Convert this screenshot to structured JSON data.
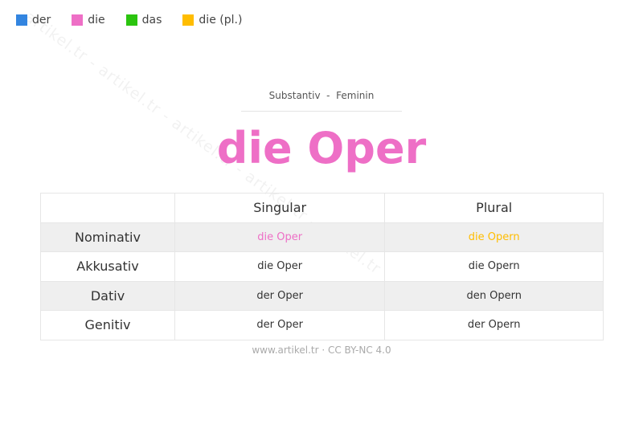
{
  "legend": [
    {
      "label": "der",
      "color": "#3385e0"
    },
    {
      "label": "die",
      "color": "#ee6fc6"
    },
    {
      "label": "das",
      "color": "#2bc40f"
    },
    {
      "label": "die (pl.)",
      "color": "#ffbd00"
    }
  ],
  "watermark": "artikel.tr - artikel.tr - artikel.tr - artikel.tr - artikel.tr",
  "subtitle": "Substantiv  -  Feminin",
  "title": "die Oper",
  "title_color": "#ee6fc6",
  "table": {
    "headers": [
      "",
      "Singular",
      "Plural"
    ],
    "rows": [
      {
        "case": "Nominativ",
        "singular": "die Oper",
        "plural": "die Opern",
        "singular_color": "#ee6fc6",
        "plural_color": "#ffbd00"
      },
      {
        "case": "Akkusativ",
        "singular": "die Oper",
        "plural": "die Opern"
      },
      {
        "case": "Dativ",
        "singular": "der Oper",
        "plural": "den Opern"
      },
      {
        "case": "Genitiv",
        "singular": "der Oper",
        "plural": "der Opern"
      }
    ]
  },
  "footer": "www.artikel.tr · CC BY-NC 4.0"
}
